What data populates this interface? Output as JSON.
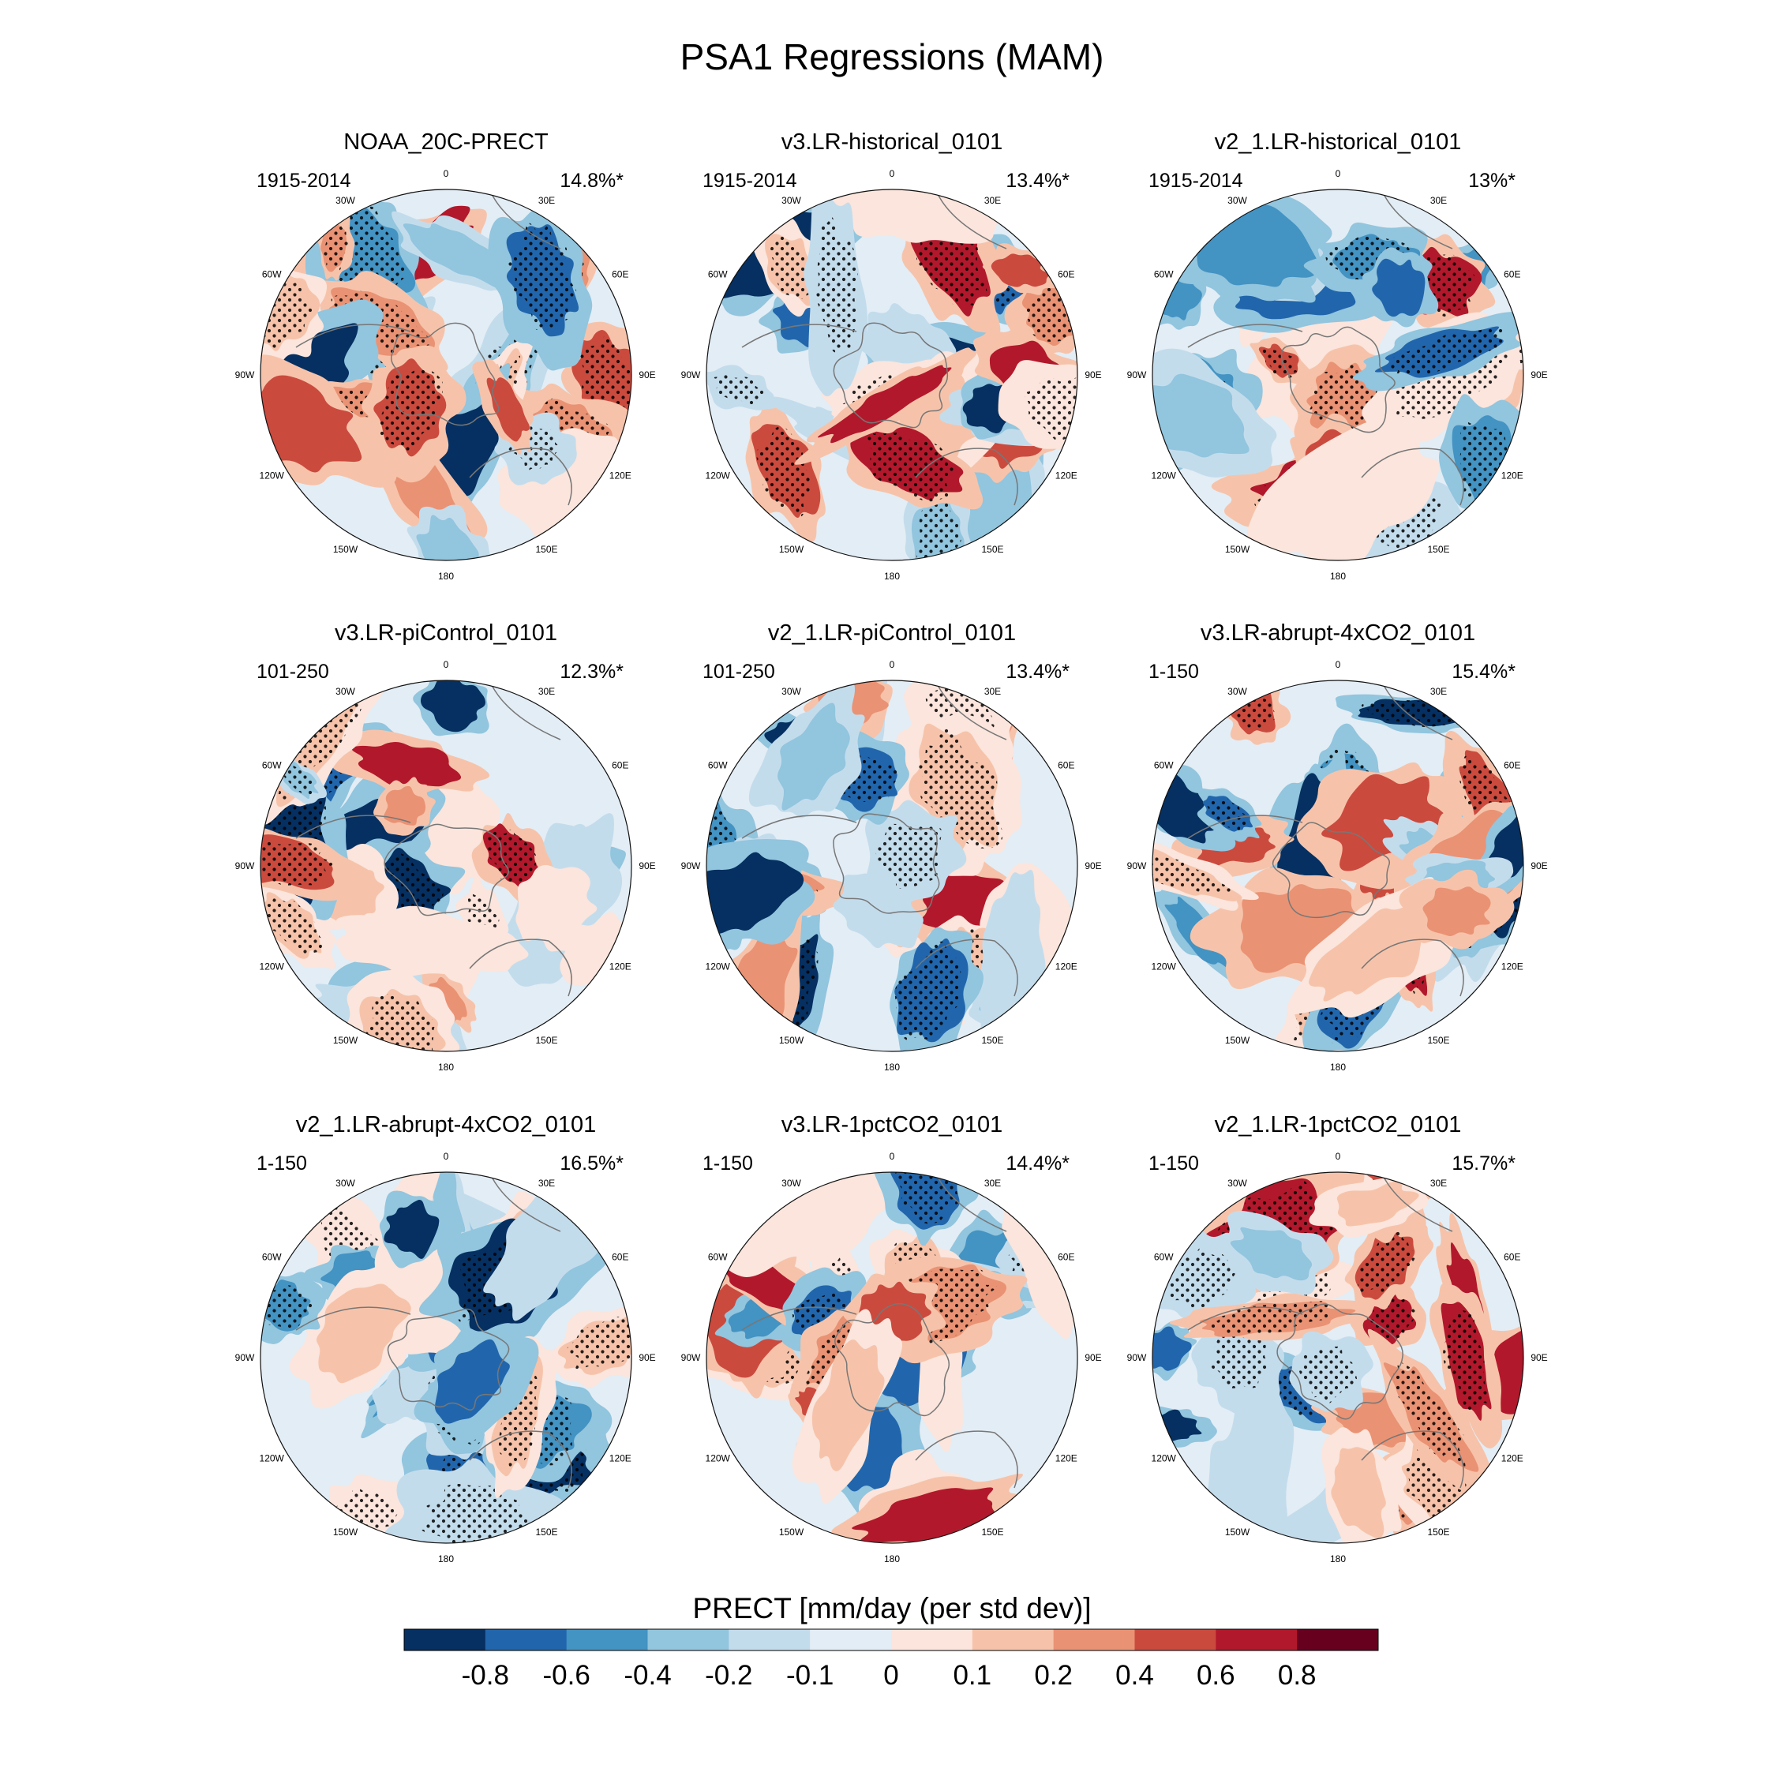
{
  "title": "PSA1 Regressions (MAM)",
  "chart_data": {
    "type": "heatmap",
    "projection": "south-polar-stereographic",
    "title": "PSA1 Regressions (MAM)",
    "longitude_labels": [
      "0",
      "30E",
      "60E",
      "90E",
      "120E",
      "150E",
      "180",
      "150W",
      "120W",
      "90W",
      "60W",
      "30W"
    ],
    "panels": [
      {
        "name": "NOAA_20C-PRECT",
        "period": "1915-2014",
        "variance": "14.8%*"
      },
      {
        "name": "v3.LR-historical_0101",
        "period": "1915-2014",
        "variance": "13.4%*"
      },
      {
        "name": "v2_1.LR-historical_0101",
        "period": "1915-2014",
        "variance": "13%*"
      },
      {
        "name": "v3.LR-piControl_0101",
        "period": "101-250",
        "variance": "12.3%*"
      },
      {
        "name": "v2_1.LR-piControl_0101",
        "period": "101-250",
        "variance": "13.4%*"
      },
      {
        "name": "v3.LR-abrupt-4xCO2_0101",
        "period": "1-150",
        "variance": "15.4%*"
      },
      {
        "name": "v2_1.LR-abrupt-4xCO2_0101",
        "period": "1-150",
        "variance": "16.5%*"
      },
      {
        "name": "v3.LR-1pctCO2_0101",
        "period": "1-150",
        "variance": "14.4%*"
      },
      {
        "name": "v2_1.LR-1pctCO2_0101",
        "period": "1-150",
        "variance": "15.7%*"
      }
    ],
    "colorbar": {
      "label": "PRECT [mm/day (per std dev)]",
      "ticks": [
        "-0.8",
        "-0.6",
        "-0.4",
        "-0.2",
        "-0.1",
        "0",
        "0.1",
        "0.2",
        "0.4",
        "0.6",
        "0.8"
      ],
      "colors": [
        "#053061",
        "#2166ac",
        "#4393c3",
        "#92c5de",
        "#c3dcec",
        "#e3edf5",
        "#fbe5dc",
        "#f6c3aa",
        "#ea9274",
        "#cb4a3e",
        "#b2182b",
        "#67001f"
      ]
    }
  }
}
